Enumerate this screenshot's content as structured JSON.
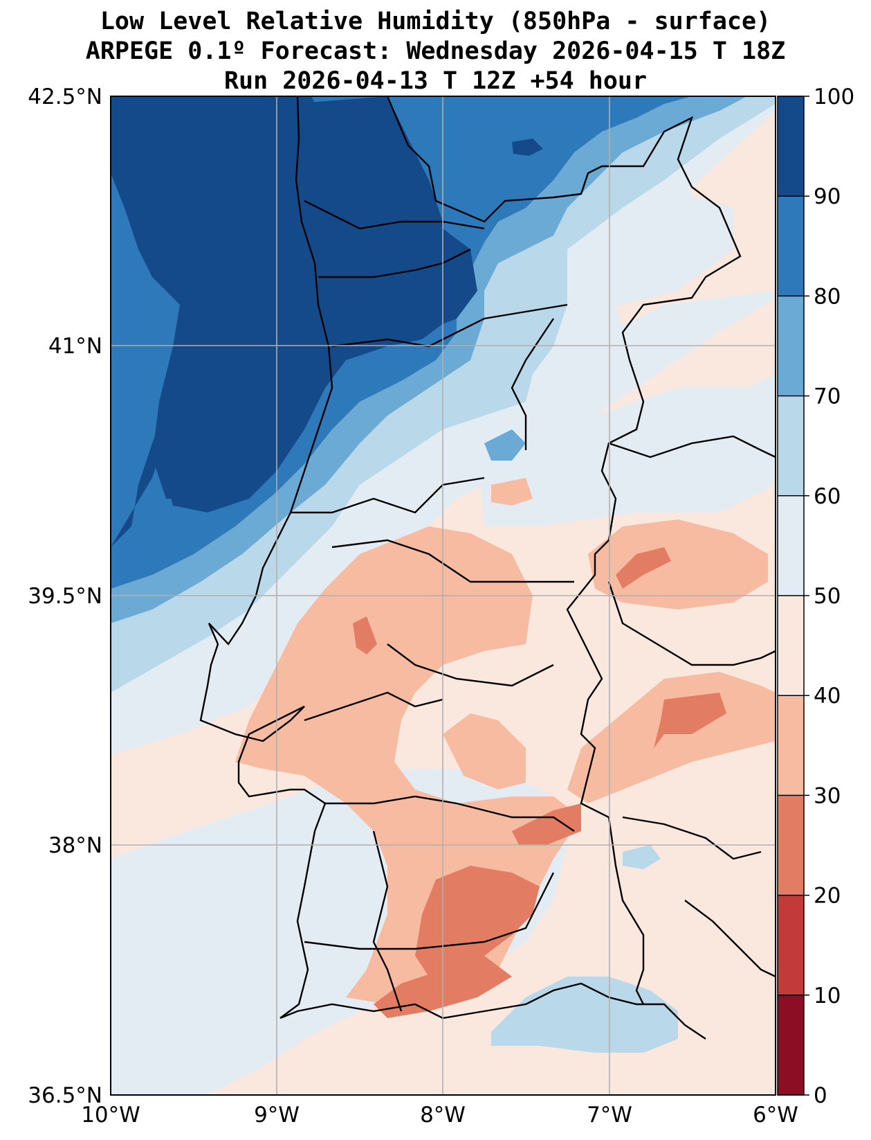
{
  "title_lines": [
    "Low Level Relative Humidity (850hPa - surface)",
    "ARPEGE 0.1º Forecast: Wednesday 2026-04-15 T 18Z",
    "Run 2026-04-13 T 12Z +54 hour"
  ],
  "map": {
    "lon_range": [
      -10,
      -6
    ],
    "lat_range": [
      36.5,
      42.5
    ],
    "lon_ticks": [
      "10°W",
      "9°W",
      "8°W",
      "7°W",
      "6°W"
    ],
    "lat_ticks": [
      "42.5°N",
      "41°N",
      "39.5°N",
      "38°N",
      "36.5°N"
    ],
    "gridlines": true
  },
  "colorbar": {
    "ticks": [
      "0",
      "10",
      "20",
      "30",
      "40",
      "50",
      "60",
      "70",
      "80",
      "90",
      "100"
    ],
    "colors": [
      "#8b0e25",
      "#c33a3a",
      "#e27d64",
      "#f6bba0",
      "#fae7de",
      "#e4ecf3",
      "#b9d8ea",
      "#6aaad4",
      "#2e79ba",
      "#154a8a"
    ]
  },
  "regions": [
    {
      "name": "ocean-west",
      "label": "",
      "color": "#2e79ba"
    },
    {
      "name": "coast-north",
      "label": "",
      "color": "#154a8a"
    }
  ]
}
